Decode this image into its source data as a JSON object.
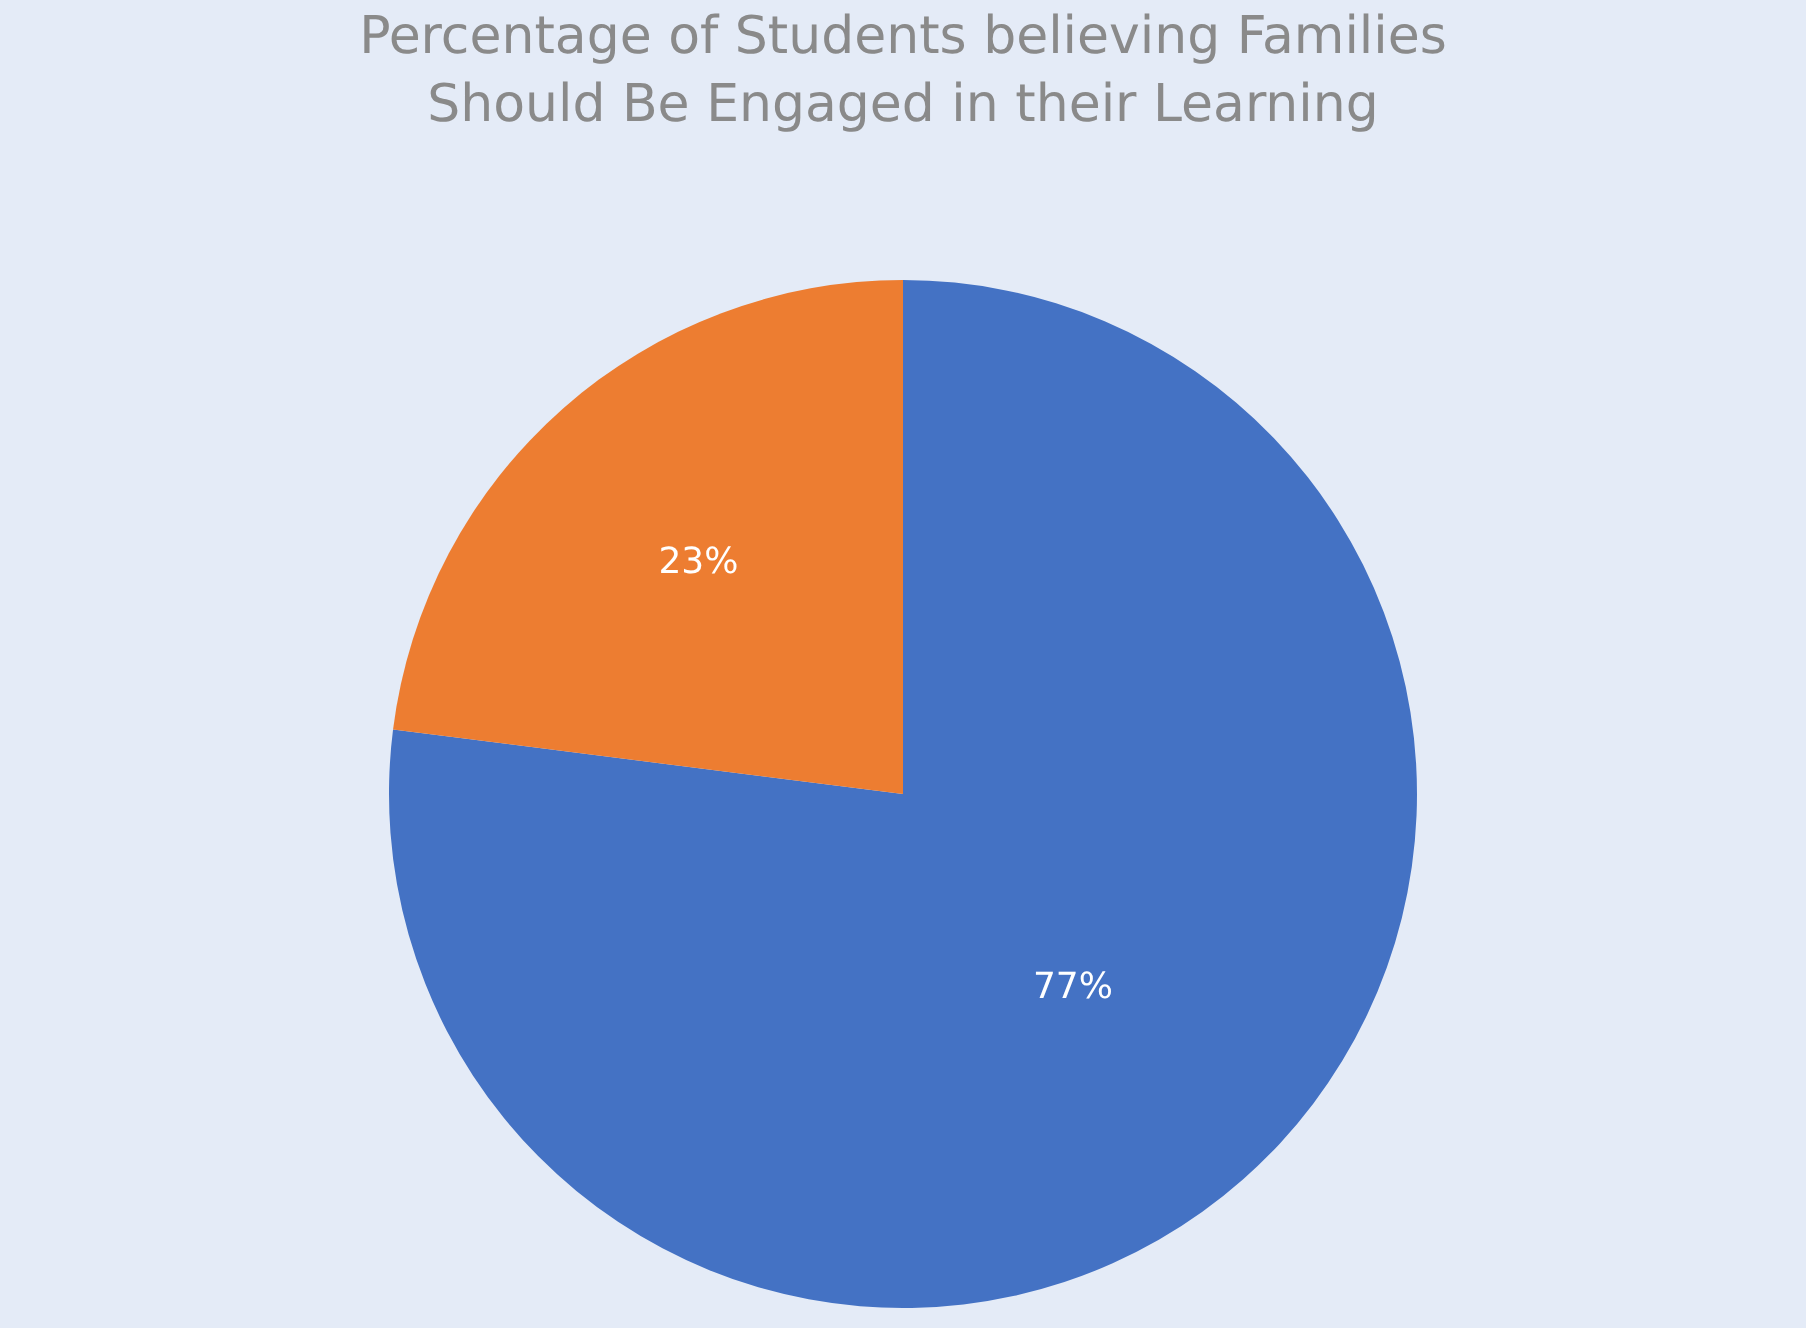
{
  "chart_data": {
    "type": "pie",
    "title": "Percentage of Students believing Families\nShould Be Engaged in their Learning",
    "categories": [
      null,
      null
    ],
    "values": [
      77,
      23
    ],
    "value_labels": [
      "77%",
      "23%"
    ],
    "colors": [
      "#4472c4",
      "#ed7d31"
    ]
  }
}
